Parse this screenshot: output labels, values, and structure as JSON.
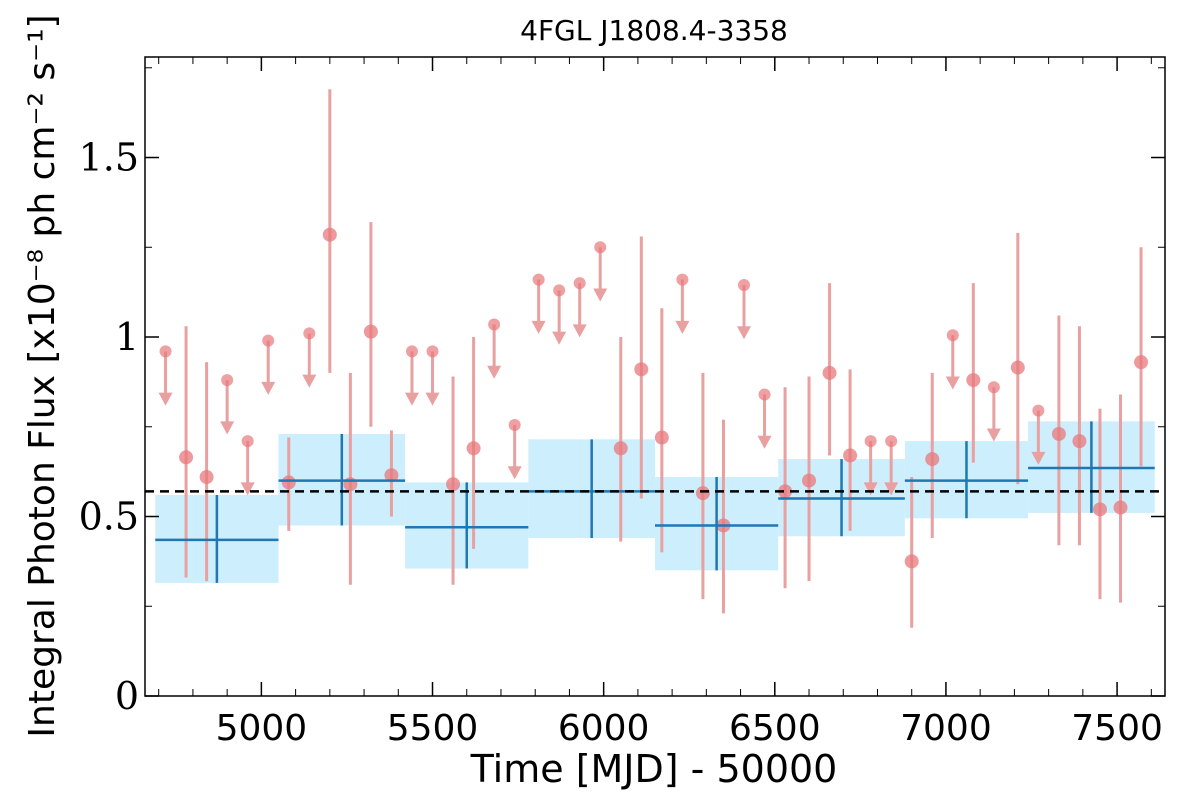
{
  "chart_data": {
    "type": "scatter",
    "title": "4FGL J1808.4-3358",
    "xlabel": "Time [MJD] - 50000",
    "ylabel": "Integral Photon Flux [x10⁻⁸ ph cm⁻² s⁻¹]",
    "xlim": [
      4660,
      7640
    ],
    "ylim": [
      0,
      1.78
    ],
    "xticks": [
      5000,
      5500,
      6000,
      6500,
      7000,
      7500
    ],
    "xtick_labels": [
      "5000",
      "5500",
      "6000",
      "6500",
      "7000",
      "7500"
    ],
    "yticks": [
      0,
      0.5,
      1,
      1.5
    ],
    "ytick_labels": [
      "0",
      "0.5",
      "1",
      "1.5"
    ],
    "grid": false,
    "mean_flux": 0.57,
    "colors": {
      "points": "#e8787c",
      "errorbars": "#e8a0a0",
      "bins_fill": "#cdeefc",
      "bins_line": "#1f77b4",
      "mean_line": "#000000"
    },
    "series": [
      {
        "points": [
          {
            "x": 4780,
            "y": 0.665,
            "ylo": 0.33,
            "yhi": 1.03
          },
          {
            "x": 4840,
            "y": 0.61,
            "ylo": 0.32,
            "yhi": 0.93
          },
          {
            "x": 5080,
            "y": 0.595,
            "ylo": 0.46,
            "yhi": 0.72
          },
          {
            "x": 5200,
            "y": 1.285,
            "ylo": 0.9,
            "yhi": 1.69
          },
          {
            "x": 5260,
            "y": 0.59,
            "ylo": 0.31,
            "yhi": 0.9
          },
          {
            "x": 5320,
            "y": 1.015,
            "ylo": 0.75,
            "yhi": 1.32
          },
          {
            "x": 5380,
            "y": 0.615,
            "ylo": 0.5,
            "yhi": 0.74
          },
          {
            "x": 5560,
            "y": 0.59,
            "ylo": 0.31,
            "yhi": 0.89
          },
          {
            "x": 5620,
            "y": 0.69,
            "ylo": 0.41,
            "yhi": 1.0
          },
          {
            "x": 6050,
            "y": 0.69,
            "ylo": 0.43,
            "yhi": 1.0
          },
          {
            "x": 6110,
            "y": 0.91,
            "ylo": 0.55,
            "yhi": 1.28
          },
          {
            "x": 6170,
            "y": 0.72,
            "ylo": 0.4,
            "yhi": 1.08
          },
          {
            "x": 6290,
            "y": 0.565,
            "ylo": 0.27,
            "yhi": 0.9
          },
          {
            "x": 6350,
            "y": 0.475,
            "ylo": 0.23,
            "yhi": 0.77
          },
          {
            "x": 6530,
            "y": 0.57,
            "ylo": 0.3,
            "yhi": 0.86
          },
          {
            "x": 6600,
            "y": 0.6,
            "ylo": 0.32,
            "yhi": 0.89
          },
          {
            "x": 6660,
            "y": 0.9,
            "ylo": 0.67,
            "yhi": 1.15
          },
          {
            "x": 6720,
            "y": 0.67,
            "ylo": 0.46,
            "yhi": 0.91
          },
          {
            "x": 6900,
            "y": 0.375,
            "ylo": 0.19,
            "yhi": 0.61
          },
          {
            "x": 6960,
            "y": 0.66,
            "ylo": 0.44,
            "yhi": 0.9
          },
          {
            "x": 7080,
            "y": 0.88,
            "ylo": 0.65,
            "yhi": 1.15
          },
          {
            "x": 7210,
            "y": 0.915,
            "ylo": 0.59,
            "yhi": 1.29
          },
          {
            "x": 7330,
            "y": 0.73,
            "ylo": 0.42,
            "yhi": 1.06
          },
          {
            "x": 7390,
            "y": 0.71,
            "ylo": 0.42,
            "yhi": 1.03
          },
          {
            "x": 7450,
            "y": 0.52,
            "ylo": 0.27,
            "yhi": 0.8
          },
          {
            "x": 7510,
            "y": 0.525,
            "ylo": 0.26,
            "yhi": 0.84
          },
          {
            "x": 7570,
            "y": 0.93,
            "ylo": 0.64,
            "yhi": 1.25
          }
        ]
      },
      {
        "upper_limits": [
          {
            "x": 4720,
            "y": 0.96
          },
          {
            "x": 4900,
            "y": 0.88
          },
          {
            "x": 4960,
            "y": 0.71
          },
          {
            "x": 5020,
            "y": 0.99
          },
          {
            "x": 5140,
            "y": 1.01
          },
          {
            "x": 5440,
            "y": 0.96
          },
          {
            "x": 5500,
            "y": 0.96
          },
          {
            "x": 5680,
            "y": 1.035
          },
          {
            "x": 5740,
            "y": 0.755
          },
          {
            "x": 5810,
            "y": 1.16
          },
          {
            "x": 5870,
            "y": 1.13
          },
          {
            "x": 5930,
            "y": 1.15
          },
          {
            "x": 5990,
            "y": 1.25
          },
          {
            "x": 6230,
            "y": 1.16
          },
          {
            "x": 6410,
            "y": 1.145
          },
          {
            "x": 6470,
            "y": 0.84
          },
          {
            "x": 6780,
            "y": 0.71
          },
          {
            "x": 6840,
            "y": 0.71
          },
          {
            "x": 7020,
            "y": 1.005
          },
          {
            "x": 7140,
            "y": 0.86
          },
          {
            "x": 7270,
            "y": 0.795
          }
        ]
      },
      {
        "bins": [
          {
            "x0": 4690,
            "x1": 5050,
            "y": 0.435,
            "ylo": 0.315,
            "yhi": 0.56
          },
          {
            "x0": 5050,
            "x1": 5420,
            "y": 0.6,
            "ylo": 0.475,
            "yhi": 0.73
          },
          {
            "x0": 5420,
            "x1": 5780,
            "y": 0.47,
            "ylo": 0.355,
            "yhi": 0.595
          },
          {
            "x0": 5780,
            "x1": 6150,
            "y": 0.57,
            "ylo": 0.44,
            "yhi": 0.715
          },
          {
            "x0": 6150,
            "x1": 6510,
            "y": 0.475,
            "ylo": 0.35,
            "yhi": 0.61
          },
          {
            "x0": 6510,
            "x1": 6880,
            "y": 0.55,
            "ylo": 0.445,
            "yhi": 0.66
          },
          {
            "x0": 6880,
            "x1": 7240,
            "y": 0.6,
            "ylo": 0.495,
            "yhi": 0.71
          },
          {
            "x0": 7240,
            "x1": 7610,
            "y": 0.635,
            "ylo": 0.51,
            "yhi": 0.765
          }
        ]
      }
    ]
  }
}
